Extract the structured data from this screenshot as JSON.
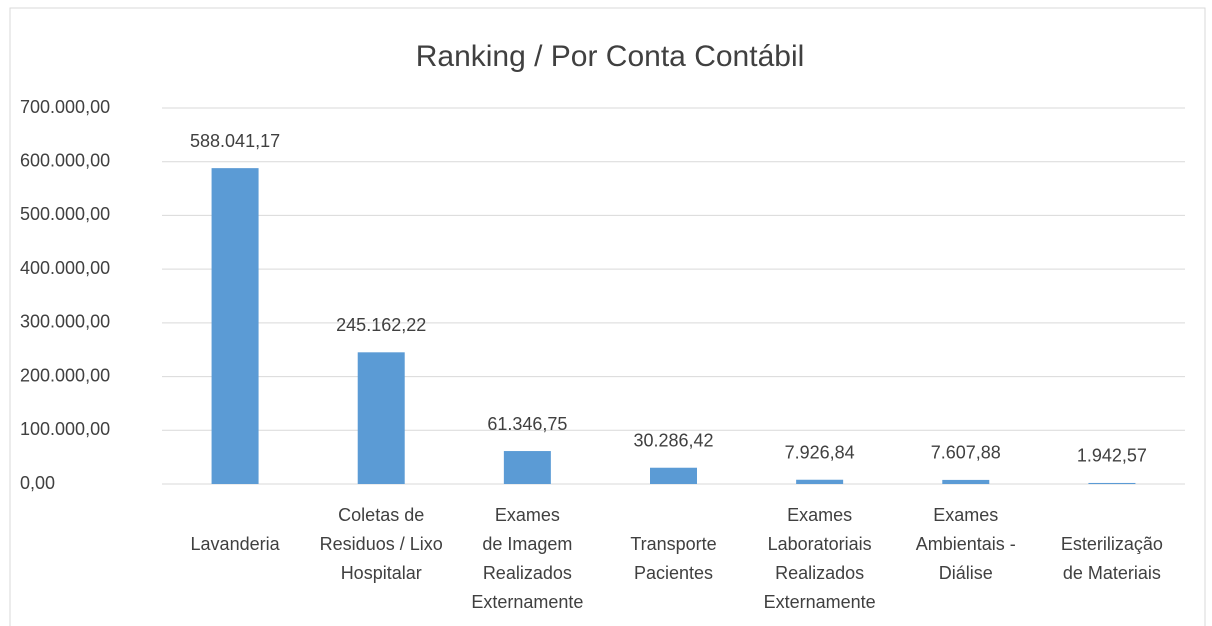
{
  "chart_data": {
    "type": "bar",
    "title": "Ranking / Por Conta Contábil",
    "categories": [
      "Lavanderia",
      "Coletas de\nResiduos / Lixo\nHospitalar",
      "Exames\nde Imagem\nRealizados\nExternamente",
      "Transporte\nPacientes",
      "Exames\nLaboratoriais\nRealizados\nExternamente",
      "Exames\nAmbientais -\nDiálise",
      "Esterilização\nde Materiais"
    ],
    "values": [
      588041.17,
      245162.22,
      61346.75,
      30286.42,
      7926.84,
      7607.88,
      1942.57
    ],
    "value_labels": [
      "588.041,17",
      "245.162,22",
      "61.346,75",
      "30.286,42",
      "7.926,84",
      "7.607,88",
      "1.942,57"
    ],
    "color": "#5b9bd5",
    "ylim": [
      0,
      700000
    ],
    "yticks": [
      {
        "value": 0,
        "label": "0,00"
      },
      {
        "value": 100000,
        "label": "100.000,00"
      },
      {
        "value": 200000,
        "label": "200.000,00"
      },
      {
        "value": 300000,
        "label": "300.000,00"
      },
      {
        "value": 400000,
        "label": "400.000,00"
      },
      {
        "value": 500000,
        "label": "500.000,00"
      },
      {
        "value": 600000,
        "label": "600.000,00"
      },
      {
        "value": 700000,
        "label": "700.000,00"
      }
    ],
    "grid": true
  }
}
